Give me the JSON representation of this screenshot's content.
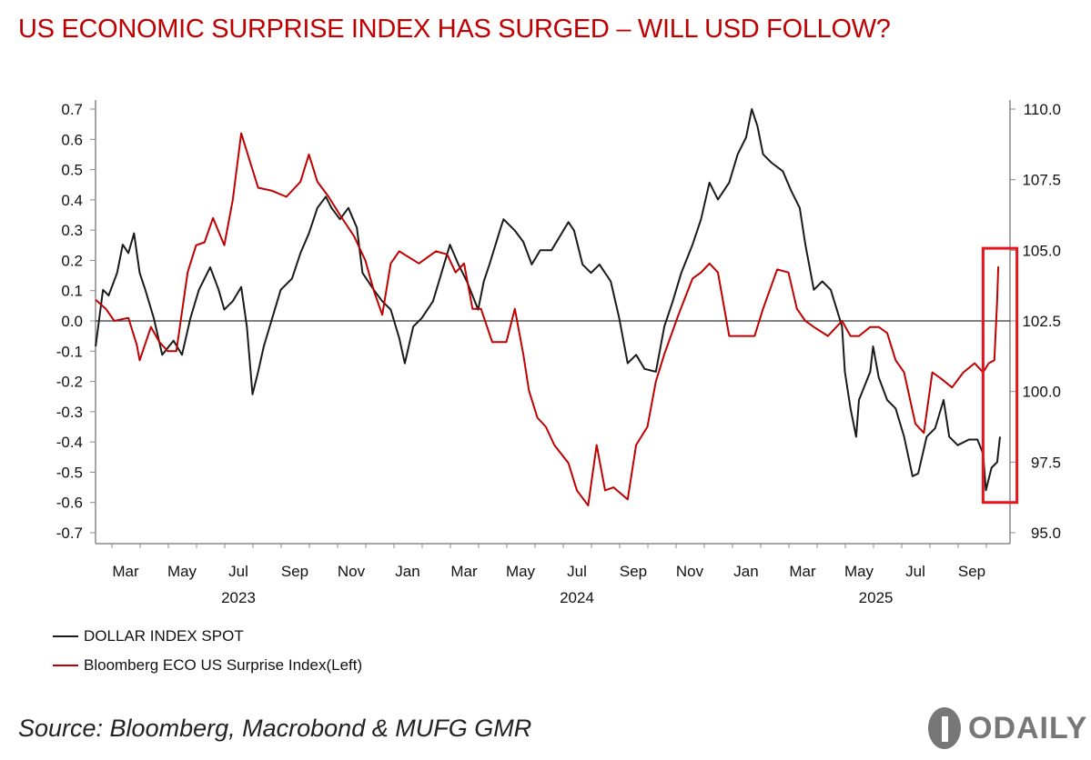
{
  "title": "US ECONOMIC SURPRISE INDEX HAS SURGED – WILL USD FOLLOW?",
  "source": "Source: Bloomberg, Macrobond & MUFG GMR",
  "logo_text": "ODAILY",
  "colors": {
    "dollar": "#1a1a1a",
    "surprise": "#c00000",
    "highlight": "#e8141c"
  },
  "chart_data": {
    "type": "line",
    "title": "US ECONOMIC SURPRISE INDEX HAS SURGED – WILL USD FOLLOW?",
    "x_unit": "months since Mar 2023",
    "xlim": [
      -1.06,
      31.4
    ],
    "x_ticks": [
      {
        "t": 0,
        "label": "Mar"
      },
      {
        "t": 2,
        "label": "May"
      },
      {
        "t": 4,
        "label": "Jul"
      },
      {
        "t": 6,
        "label": "Sep"
      },
      {
        "t": 8,
        "label": "Nov"
      },
      {
        "t": 10,
        "label": "Jan"
      },
      {
        "t": 12,
        "label": "Mar"
      },
      {
        "t": 14,
        "label": "May"
      },
      {
        "t": 16,
        "label": "Jul"
      },
      {
        "t": 18,
        "label": "Sep"
      },
      {
        "t": 20,
        "label": "Nov"
      },
      {
        "t": 22,
        "label": "Jan"
      },
      {
        "t": 24,
        "label": "Mar"
      },
      {
        "t": 26,
        "label": "May"
      },
      {
        "t": 28,
        "label": "Jul"
      },
      {
        "t": 30,
        "label": "Sep"
      }
    ],
    "years": [
      {
        "t": 4,
        "label": "2023"
      },
      {
        "t": 16,
        "label": "2024"
      },
      {
        "t": 26.6,
        "label": "2025"
      }
    ],
    "left_axis": {
      "ylim": [
        -0.7,
        0.7
      ],
      "ticks": [
        "0.7",
        "0.6",
        "0.5",
        "0.4",
        "0.3",
        "0.2",
        "0.1",
        "0.0",
        "-0.1",
        "-0.2",
        "-0.3",
        "-0.4",
        "-0.5",
        "-0.6",
        "-0.7"
      ]
    },
    "right_axis": {
      "ylim": [
        95.0,
        110.0
      ],
      "ticks": [
        "110.0",
        "107.5",
        "105.0",
        "102.5",
        "100.0",
        "97.5",
        "95.0"
      ]
    },
    "reference_line": 0.0,
    "highlight_box": {
      "t_range": [
        30.4,
        31.6
      ],
      "left_range": [
        -0.6,
        0.24
      ]
    },
    "legend_placement": "bottom-left",
    "series": [
      {
        "name": "DOLLAR INDEX SPOT",
        "axis": "right",
        "color": "#1a1a1a",
        "points": [
          [
            -1.06,
            101.6
          ],
          [
            -0.8,
            103.6
          ],
          [
            -0.6,
            103.4
          ],
          [
            -0.3,
            104.2
          ],
          [
            -0.1,
            105.2
          ],
          [
            0.1,
            104.9
          ],
          [
            0.3,
            105.6
          ],
          [
            0.5,
            104.2
          ],
          [
            0.7,
            103.6
          ],
          [
            1.0,
            102.6
          ],
          [
            1.3,
            101.3
          ],
          [
            1.7,
            101.8
          ],
          [
            2.0,
            101.3
          ],
          [
            2.3,
            102.6
          ],
          [
            2.6,
            103.6
          ],
          [
            3.0,
            104.4
          ],
          [
            3.3,
            103.6
          ],
          [
            3.5,
            102.9
          ],
          [
            3.8,
            103.2
          ],
          [
            4.1,
            103.7
          ],
          [
            4.3,
            102.3
          ],
          [
            4.5,
            99.9
          ],
          [
            4.7,
            100.7
          ],
          [
            4.9,
            101.6
          ],
          [
            5.2,
            102.6
          ],
          [
            5.5,
            103.6
          ],
          [
            5.9,
            104.0
          ],
          [
            6.2,
            104.9
          ],
          [
            6.5,
            105.6
          ],
          [
            6.8,
            106.5
          ],
          [
            7.1,
            106.9
          ],
          [
            7.3,
            106.5
          ],
          [
            7.6,
            106.1
          ],
          [
            7.9,
            106.5
          ],
          [
            8.2,
            105.8
          ],
          [
            8.4,
            104.2
          ],
          [
            8.8,
            103.6
          ],
          [
            9.1,
            103.2
          ],
          [
            9.4,
            102.9
          ],
          [
            9.7,
            101.9
          ],
          [
            9.9,
            101.0
          ],
          [
            10.2,
            102.3
          ],
          [
            10.5,
            102.6
          ],
          [
            10.9,
            103.2
          ],
          [
            11.2,
            104.2
          ],
          [
            11.5,
            105.2
          ],
          [
            11.8,
            104.5
          ],
          [
            12.1,
            103.9
          ],
          [
            12.5,
            102.9
          ],
          [
            12.7,
            103.9
          ],
          [
            12.9,
            104.5
          ],
          [
            13.3,
            105.8
          ],
          [
            13.4,
            106.1
          ],
          [
            13.8,
            105.7
          ],
          [
            14.1,
            105.3
          ],
          [
            14.4,
            104.5
          ],
          [
            14.7,
            105.0
          ],
          [
            15.1,
            105.0
          ],
          [
            15.4,
            105.5
          ],
          [
            15.7,
            106.0
          ],
          [
            15.9,
            105.7
          ],
          [
            16.2,
            104.5
          ],
          [
            16.5,
            104.2
          ],
          [
            16.8,
            104.5
          ],
          [
            17.2,
            103.9
          ],
          [
            17.5,
            102.6
          ],
          [
            17.8,
            101.0
          ],
          [
            18.1,
            101.3
          ],
          [
            18.4,
            100.8
          ],
          [
            18.8,
            100.7
          ],
          [
            19.1,
            102.3
          ],
          [
            19.4,
            103.2
          ],
          [
            19.7,
            104.2
          ],
          [
            20.1,
            105.2
          ],
          [
            20.4,
            106.1
          ],
          [
            20.7,
            107.4
          ],
          [
            21.0,
            106.8
          ],
          [
            21.4,
            107.4
          ],
          [
            21.7,
            108.4
          ],
          [
            22.0,
            109.0
          ],
          [
            22.2,
            110.0
          ],
          [
            22.4,
            109.4
          ],
          [
            22.6,
            108.4
          ],
          [
            22.9,
            108.1
          ],
          [
            23.3,
            107.8
          ],
          [
            23.6,
            107.1
          ],
          [
            23.9,
            106.5
          ],
          [
            24.1,
            105.2
          ],
          [
            24.4,
            103.6
          ],
          [
            24.7,
            103.9
          ],
          [
            25.0,
            103.6
          ],
          [
            25.4,
            102.3
          ],
          [
            25.5,
            100.7
          ],
          [
            25.7,
            99.4
          ],
          [
            25.9,
            98.4
          ],
          [
            26.0,
            99.7
          ],
          [
            26.4,
            100.7
          ],
          [
            26.5,
            101.6
          ],
          [
            26.7,
            100.5
          ],
          [
            27.0,
            99.7
          ],
          [
            27.3,
            99.4
          ],
          [
            27.6,
            98.4
          ],
          [
            27.9,
            97.0
          ],
          [
            28.1,
            97.1
          ],
          [
            28.4,
            98.4
          ],
          [
            28.7,
            98.7
          ],
          [
            29.0,
            99.7
          ],
          [
            29.2,
            98.4
          ],
          [
            29.5,
            98.1
          ],
          [
            29.9,
            98.3
          ],
          [
            30.2,
            98.3
          ],
          [
            30.4,
            97.8
          ],
          [
            30.5,
            96.5
          ],
          [
            30.7,
            97.3
          ],
          [
            30.9,
            97.5
          ],
          [
            31.0,
            98.4
          ]
        ]
      },
      {
        "name": "Bloomberg ECO US Surprise Index(Left)",
        "axis": "left",
        "color": "#c00000",
        "points": [
          [
            -1.06,
            0.07
          ],
          [
            -0.7,
            0.04
          ],
          [
            -0.4,
            0.0
          ],
          [
            0.1,
            0.01
          ],
          [
            0.4,
            -0.08
          ],
          [
            0.5,
            -0.13
          ],
          [
            0.9,
            -0.02
          ],
          [
            1.2,
            -0.07
          ],
          [
            1.5,
            -0.1
          ],
          [
            1.8,
            -0.1
          ],
          [
            2.2,
            0.16
          ],
          [
            2.5,
            0.25
          ],
          [
            2.8,
            0.26
          ],
          [
            3.1,
            0.34
          ],
          [
            3.5,
            0.25
          ],
          [
            3.8,
            0.4
          ],
          [
            4.1,
            0.62
          ],
          [
            4.4,
            0.53
          ],
          [
            4.7,
            0.44
          ],
          [
            5.2,
            0.43
          ],
          [
            5.7,
            0.41
          ],
          [
            6.2,
            0.46
          ],
          [
            6.5,
            0.55
          ],
          [
            6.8,
            0.46
          ],
          [
            7.2,
            0.41
          ],
          [
            7.6,
            0.35
          ],
          [
            8.1,
            0.28
          ],
          [
            8.5,
            0.2
          ],
          [
            8.8,
            0.1
          ],
          [
            9.1,
            0.02
          ],
          [
            9.4,
            0.19
          ],
          [
            9.7,
            0.23
          ],
          [
            10.4,
            0.19
          ],
          [
            11.0,
            0.23
          ],
          [
            11.4,
            0.22
          ],
          [
            11.7,
            0.16
          ],
          [
            12.0,
            0.19
          ],
          [
            12.3,
            0.04
          ],
          [
            12.6,
            0.04
          ],
          [
            13.0,
            -0.07
          ],
          [
            13.5,
            -0.07
          ],
          [
            13.8,
            0.04
          ],
          [
            14.1,
            -0.11
          ],
          [
            14.3,
            -0.23
          ],
          [
            14.6,
            -0.32
          ],
          [
            14.9,
            -0.35
          ],
          [
            15.2,
            -0.41
          ],
          [
            15.7,
            -0.47
          ],
          [
            16.0,
            -0.56
          ],
          [
            16.4,
            -0.61
          ],
          [
            16.7,
            -0.41
          ],
          [
            17.0,
            -0.56
          ],
          [
            17.3,
            -0.55
          ],
          [
            17.8,
            -0.59
          ],
          [
            18.1,
            -0.41
          ],
          [
            18.5,
            -0.35
          ],
          [
            18.8,
            -0.2
          ],
          [
            19.1,
            -0.11
          ],
          [
            19.6,
            0.02
          ],
          [
            20.1,
            0.14
          ],
          [
            20.4,
            0.16
          ],
          [
            20.7,
            0.19
          ],
          [
            21.0,
            0.16
          ],
          [
            21.4,
            -0.05
          ],
          [
            21.7,
            -0.05
          ],
          [
            22.3,
            -0.05
          ],
          [
            22.6,
            0.04
          ],
          [
            23.1,
            0.17
          ],
          [
            23.5,
            0.16
          ],
          [
            23.8,
            0.04
          ],
          [
            24.1,
            0.0
          ],
          [
            24.4,
            -0.02
          ],
          [
            24.9,
            -0.05
          ],
          [
            25.4,
            0.0
          ],
          [
            25.7,
            -0.05
          ],
          [
            26.0,
            -0.05
          ],
          [
            26.4,
            -0.02
          ],
          [
            26.7,
            -0.02
          ],
          [
            27.0,
            -0.04
          ],
          [
            27.3,
            -0.13
          ],
          [
            27.6,
            -0.17
          ],
          [
            28.0,
            -0.34
          ],
          [
            28.3,
            -0.37
          ],
          [
            28.6,
            -0.17
          ],
          [
            28.9,
            -0.19
          ],
          [
            29.3,
            -0.22
          ],
          [
            29.7,
            -0.17
          ],
          [
            30.1,
            -0.14
          ],
          [
            30.4,
            -0.17
          ],
          [
            30.6,
            -0.14
          ],
          [
            30.8,
            -0.13
          ],
          [
            30.9,
            0.07
          ],
          [
            30.94,
            0.18
          ]
        ]
      }
    ]
  }
}
